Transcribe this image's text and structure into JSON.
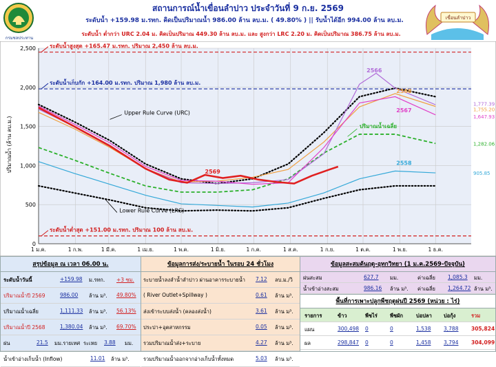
{
  "header": {
    "title": "สถานการณ์น้ำเขื่อนลำปาว ประจำวันที่ 9 ก.ย. 2569",
    "line1": "ระดับน้ำ +159.98 ม.รทก. คิดเป็นปริมาณน้ำ 986.00 ล้าน ลบ.ม. ( 49.80% ) || รับน้ำได้อีก 994.00 ล้าน ลบ.ม.",
    "line2": "ระดับน้ำ ต่ำกว่า URC 2.04 ม. คิดเป็นปริมาณ 449.30 ล้าน ลบ.ม. และ สูงกว่า LRC 2.20 ม. คิดเป็นปริมาณ 386.75 ล้าน ลบ.ม.",
    "logo_left_caption": "กรมชลประทาน",
    "logo_right_text": "เขื่อนลำปาว"
  },
  "chart_data": {
    "type": "line",
    "ylabel": "ปริมาณน้ำ (ล้าน ลบ.ม.)",
    "ylim": [
      0,
      2500
    ],
    "yticks": [
      "0",
      "500",
      "1,000",
      "1,500",
      "2,000",
      "2,500"
    ],
    "xticks": [
      "1 ม.ค.",
      "1 ก.พ.",
      "1 มี.ค.",
      "1 เม.ย.",
      "1 พ.ค.",
      "1 มิ.ย.",
      "1 ก.ค.",
      "1 ส.ค.",
      "1 ก.ย.",
      "1 ต.ค.",
      "1 พ.ย.",
      "1 ธ.ค."
    ],
    "ref_lines": [
      {
        "label": "ระดับน้ำสูงสุด +165.47 ม.รทก. ปริมาณ 2,450 ล้าน ลบ.ม.",
        "value": 2450,
        "color": "#d21e1e"
      },
      {
        "label": "ระดับน้ำเก็บกัก +164.00 ม.รทก. ปริมาณ 1,980 ล้าน ลบ.ม.",
        "value": 1980,
        "color": "#1a2fa0"
      },
      {
        "label": "ระดับน้ำต่ำสุด +151.00 ม.รทก. ปริมาณ 100 ล้าน ลบ.ม.",
        "value": 100,
        "color": "#d21e1e"
      }
    ],
    "annotations": {
      "urc": "Upper Rule Curve (URC)",
      "lrc": "Lower Rule Curve (LRC)",
      "avg": "ปริมาณน้ำเฉลี่ย",
      "end_values": [
        "1,777.39",
        "1,755.20",
        "1,647.93",
        "1,282.06",
        "905.85"
      ]
    },
    "series": [
      {
        "name": "URC",
        "color": "#000000",
        "style": "dotted",
        "x": [
          0,
          30,
          60,
          90,
          120,
          150,
          180,
          210,
          240,
          270,
          300,
          334
        ],
        "values": [
          1780,
          1560,
          1320,
          1020,
          830,
          770,
          830,
          1020,
          1420,
          1880,
          1990,
          1880
        ]
      },
      {
        "name": "LRC",
        "color": "#000000",
        "style": "dotted",
        "x": [
          0,
          30,
          60,
          90,
          120,
          150,
          180,
          210,
          240,
          270,
          300,
          334
        ],
        "values": [
          740,
          650,
          560,
          460,
          420,
          430,
          420,
          460,
          580,
          690,
          740,
          740
        ]
      },
      {
        "name": "ปริมาณน้ำเฉลี่ย",
        "color": "#2bb02b",
        "style": "dashed",
        "x": [
          0,
          30,
          60,
          90,
          120,
          150,
          180,
          210,
          240,
          270,
          300,
          334
        ],
        "values": [
          1230,
          1070,
          900,
          740,
          660,
          660,
          690,
          830,
          1160,
          1400,
          1400,
          1282
        ]
      },
      {
        "name": "2558",
        "color": "#33a8d8",
        "style": "solid",
        "x": [
          0,
          30,
          60,
          90,
          120,
          150,
          180,
          210,
          240,
          270,
          300,
          334
        ],
        "values": [
          1050,
          900,
          760,
          620,
          510,
          490,
          470,
          520,
          650,
          830,
          930,
          906
        ]
      },
      {
        "name": "2568",
        "color": "#f0a040",
        "style": "solid",
        "x": [
          0,
          30,
          60,
          90,
          120,
          150,
          180,
          210,
          240,
          270,
          300,
          334
        ],
        "values": [
          1680,
          1470,
          1230,
          960,
          790,
          800,
          850,
          950,
          1300,
          1750,
          1920,
          1755
        ]
      },
      {
        "name": "2566",
        "color": "#b06ad8",
        "style": "solid",
        "x": [
          0,
          30,
          60,
          90,
          120,
          150,
          180,
          210,
          240,
          270,
          284,
          300,
          334
        ],
        "values": [
          1720,
          1500,
          1260,
          960,
          780,
          770,
          780,
          820,
          1150,
          2040,
          2180,
          1990,
          1777
        ]
      },
      {
        "name": "2567",
        "color": "#e040c8",
        "style": "solid",
        "x": [
          0,
          30,
          60,
          90,
          120,
          150,
          180,
          210,
          240,
          270,
          300,
          334
        ],
        "values": [
          1760,
          1530,
          1290,
          990,
          810,
          800,
          760,
          780,
          1230,
          1800,
          1880,
          1648
        ]
      },
      {
        "name": "2569",
        "color": "#e02020",
        "style": "bold",
        "x": [
          0,
          30,
          60,
          90,
          110,
          125,
          140,
          155,
          170,
          185,
          200,
          215,
          230,
          245,
          252
        ],
        "values": [
          1740,
          1500,
          1250,
          960,
          820,
          780,
          880,
          840,
          870,
          820,
          790,
          770,
          870,
          950,
          986
        ]
      }
    ]
  },
  "summary": {
    "title": "สรุปข้อมูล ณ เวลา 06.00 น.",
    "rows": [
      {
        "label": "ระดับน้ำวันนี้",
        "value": "+159.98",
        "unit": "ม.รทก.",
        "diff": "+3 ซม."
      },
      {
        "label": "ปริมาณน้ำปี 2569",
        "value": "986.00",
        "unit": "ล้าน ม³.",
        "diff": "49.80%"
      },
      {
        "label": "ปริมาณน้ำเฉลี่ย",
        "value": "1,111.33",
        "unit": "ล้าน ม³.",
        "diff": "56.13%"
      },
      {
        "label": "ปริมาณน้ำปี 2568",
        "value": "1,380.04",
        "unit": "ล้าน ม³.",
        "diff": "69.70%"
      }
    ],
    "rain": {
      "label": "ฝน",
      "value": "21.5",
      "unit": "มม.รายเทศ",
      "evap_label": "ระเหย",
      "evap_value": "3.88",
      "evap_unit": "มม."
    },
    "inflow": {
      "label": "น้ำเข้าอ่างเก็บน้ำ (Inflow)",
      "value": "11.01",
      "unit": "ล้าน ม³."
    }
  },
  "release": {
    "title": "ข้อมูลการส่ง/ระบายน้ำ ในรอบ 24 ชั่วโมง",
    "rows": [
      {
        "label": "ระบายน้ำลงลำน้ำลำปาว ผ่านอาคารระบายน้ำ",
        "value": "7.12",
        "unit": "ลบ.ม./วิ"
      },
      {
        "label": "( River Outlet+Spillway )",
        "value": "0.61",
        "unit": "ล้าน ม³."
      },
      {
        "label": "ส่งเข้าระบบส่งน้ำ (คลองส่งน้ำ)",
        "value": "3.61",
        "unit": "ล้าน ม³."
      },
      {
        "label": "ประปา+อุตสาหกรรม",
        "value": "0.05",
        "unit": "ล้าน ม³."
      },
      {
        "label": "รวมปริมาณน้ำส่ง+ระบาย",
        "value": "4.27",
        "unit": "ล้าน ม³."
      },
      {
        "label": "รวมปริมาณน้ำออกจากอ่างเก็บน้ำทั้งหมด",
        "value": "5.03",
        "unit": "ล้าน ม³."
      }
    ]
  },
  "accumulated": {
    "title": "ข้อมูลสะสมต้นฤดู-อุทกวิทยา (1 ม.ค.2569-ปัจจุบัน)",
    "rows": [
      {
        "label": "ฝนสะสม",
        "value": "627.7",
        "unit": "มม.",
        "avg_label": "ค่าเฉลี่ย",
        "avg_value": "1,085.3",
        "avg_unit": "มม."
      },
      {
        "label": "น้ำเข้าอ่างสะสม",
        "value": "986.16",
        "unit": "ล้าน ม³.",
        "avg_label": "ค่าเฉลี่ย",
        "avg_value": "1,264.72",
        "avg_unit": "ล้าน ม³."
      }
    ]
  },
  "crops": {
    "title": "พื้นที่การเพาะปลูกพืชฤดูฝนปี 2569 (หน่วย : ไร่)",
    "headers": [
      "รายการ",
      "ข้าว",
      "พืชไร่",
      "พืชผัก",
      "บ่อปลา",
      "บ่อกุ้ง",
      "รวม"
    ],
    "rows": [
      [
        "แผน",
        "300,498",
        "0",
        "0",
        "1,538",
        "3,788",
        "305,824"
      ],
      [
        "ผล",
        "298,847",
        "0",
        "0",
        "1,458",
        "3,794",
        "304,099"
      ]
    ]
  },
  "colors": {
    "summary_bg": "#dde8f7",
    "release_bg": "#fbe4cf",
    "accum_bg": "#ead7ef",
    "crops_head_bg": "#d9efd0",
    "chart_bg": "#e9eef8"
  }
}
